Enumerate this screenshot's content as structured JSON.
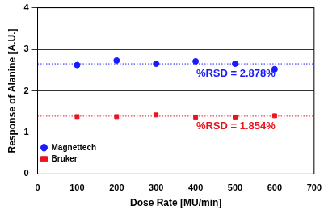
{
  "chart_data": {
    "type": "scatter",
    "x_label": "Dose Rate [MU/min]",
    "y_label": "Response of Alanine [A.U.]",
    "x": [
      100,
      200,
      300,
      400,
      500,
      600
    ],
    "series": [
      {
        "name": "Magnettech",
        "color": "#1a1aff",
        "marker": "circle",
        "values": [
          2.62,
          2.73,
          2.65,
          2.71,
          2.65,
          2.52
        ],
        "mean": 2.65,
        "annotation": "%RSD = 2.878%"
      },
      {
        "name": "Bruker",
        "color": "#e8141e",
        "marker": "square",
        "values": [
          1.38,
          1.38,
          1.42,
          1.37,
          1.37,
          1.4
        ],
        "mean": 1.39,
        "annotation": "%RSD = 1.854%"
      }
    ],
    "xlim": [
      0,
      700
    ],
    "xticks": [
      0,
      100,
      200,
      300,
      400,
      500,
      600,
      700
    ],
    "ylim": [
      0,
      4
    ],
    "yticks": [
      0,
      1,
      2,
      3,
      4
    ],
    "grid": true,
    "legend": "upper right"
  }
}
